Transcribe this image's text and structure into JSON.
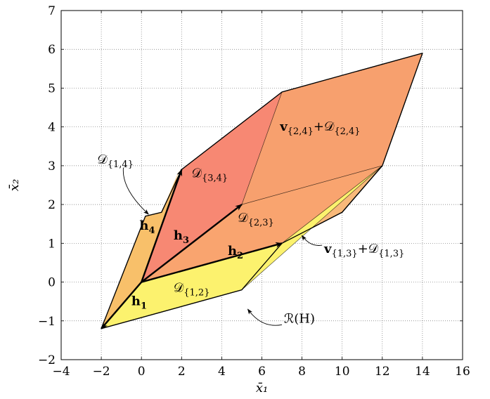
{
  "chart_data": {
    "type": "area",
    "xlabel": "x̄₁",
    "ylabel": "x̄₂",
    "xlim": [
      -4,
      16
    ],
    "ylim": [
      -2,
      7
    ],
    "xticks": [
      -4,
      -2,
      0,
      2,
      4,
      6,
      8,
      10,
      12,
      14,
      16
    ],
    "yticks": [
      -2,
      -1,
      0,
      1,
      2,
      3,
      4,
      5,
      6,
      7
    ],
    "grid": true,
    "colors": {
      "outer": "#f9b97a",
      "d12": "#fcf26e",
      "d13": "#f7c566",
      "d14": "#f8c06a",
      "d23": "#f9a46f",
      "d34": "#f78873",
      "d24": "#f7a06e"
    },
    "regions": [
      {
        "id": "outer",
        "points": [
          [
            -2,
            -1.2
          ],
          [
            5,
            -0.2
          ],
          [
            7,
            1
          ],
          [
            10,
            1.8
          ],
          [
            12,
            3
          ],
          [
            14,
            5.9
          ],
          [
            7,
            4.9
          ],
          [
            2,
            2.9
          ],
          [
            1,
            1.8
          ],
          [
            0.2,
            1.7
          ]
        ]
      },
      {
        "id": "d12",
        "points": [
          [
            -2,
            -1.2
          ],
          [
            5,
            -0.2
          ],
          [
            12,
            3
          ],
          [
            7,
            1
          ],
          [
            0,
            0
          ]
        ]
      },
      {
        "id": "d13",
        "points": [
          [
            0,
            0
          ],
          [
            7,
            1
          ],
          [
            12,
            3
          ],
          [
            5,
            2
          ]
        ]
      },
      {
        "id": "d14",
        "points": [
          [
            -2,
            -1.2
          ],
          [
            0,
            0
          ],
          [
            1.9,
            2.9
          ],
          [
            1,
            1.8
          ],
          [
            0.2,
            1.7
          ]
        ]
      },
      {
        "id": "d23",
        "points": [
          [
            0,
            0
          ],
          [
            7,
            1
          ],
          [
            12,
            3
          ],
          [
            5,
            2
          ]
        ]
      },
      {
        "id": "d34",
        "points": [
          [
            0,
            0
          ],
          [
            5,
            2
          ],
          [
            7,
            4.9
          ],
          [
            2,
            2.9
          ]
        ]
      },
      {
        "id": "d24",
        "points": [
          [
            5,
            2
          ],
          [
            12,
            3
          ],
          [
            14,
            5.9
          ],
          [
            7,
            4.9
          ]
        ]
      }
    ],
    "inner_edges": [
      [
        [
          5,
          2
        ],
        [
          12,
          3
        ]
      ],
      [
        [
          5,
          2
        ],
        [
          7,
          4.9
        ]
      ],
      [
        [
          7,
          1
        ],
        [
          12,
          3
        ]
      ],
      [
        [
          5,
          -0.2
        ],
        [
          12,
          3
        ]
      ]
    ],
    "vectors": [
      {
        "name": "h1",
        "from": [
          0,
          0
        ],
        "to": [
          -2,
          -1.2
        ]
      },
      {
        "name": "h2",
        "from": [
          0,
          0
        ],
        "to": [
          7,
          1
        ]
      },
      {
        "name": "h3",
        "from": [
          0,
          0
        ],
        "to": [
          5,
          2
        ]
      },
      {
        "name": "h4",
        "from": [
          0,
          0
        ],
        "to": [
          2,
          2.9
        ]
      }
    ],
    "annotations": [
      {
        "id": "lbl-h1",
        "text": "h",
        "sub": "1",
        "bold": true,
        "at": [
          -0.5,
          -0.6
        ]
      },
      {
        "id": "lbl-h2",
        "text": "h",
        "sub": "2",
        "bold": true,
        "at": [
          4.3,
          0.7
        ]
      },
      {
        "id": "lbl-h3",
        "text": "h",
        "sub": "3",
        "bold": true,
        "at": [
          1.6,
          1.1
        ]
      },
      {
        "id": "lbl-h4",
        "text": "h",
        "sub": "4",
        "bold": true,
        "at": [
          -0.1,
          1.35
        ]
      },
      {
        "id": "lbl-d12",
        "text": "𝒟",
        "sub": "{1,2}",
        "bold": false,
        "at": [
          1.6,
          -0.25
        ]
      },
      {
        "id": "lbl-d23",
        "text": "𝒟",
        "sub": "{2,3}",
        "bold": false,
        "at": [
          4.8,
          1.55
        ]
      },
      {
        "id": "lbl-d34",
        "text": "𝒟",
        "sub": "{3,4}",
        "bold": false,
        "at": [
          2.5,
          2.7
        ]
      },
      {
        "id": "lbl-d14",
        "text": "𝒟",
        "sub": "{1,4}",
        "bold": false,
        "at": [
          -2.2,
          3.05
        ]
      },
      {
        "id": "lbl-v24",
        "text": "v",
        "sub": "{2,4}",
        "bold": true,
        "tail": "+𝒟",
        "tail_sub": "{2,4}",
        "at": [
          6.9,
          3.9
        ]
      },
      {
        "id": "lbl-v13",
        "text": "v",
        "sub": "{1,3}",
        "bold": true,
        "tail": "+𝒟",
        "tail_sub": "{1,3}",
        "at": [
          9.1,
          0.75
        ]
      },
      {
        "id": "lbl-rh",
        "text": "ℛ(H)",
        "bold": false,
        "at": [
          7.1,
          -1.05
        ]
      }
    ],
    "pointers": [
      {
        "from": [
          -0.9,
          2.95
        ],
        "to": [
          0.35,
          1.75
        ],
        "ctrl": [
          -1,
          2.4
        ]
      },
      {
        "from": [
          9.0,
          0.95
        ],
        "to": [
          8.0,
          1.2
        ],
        "ctrl": [
          8.4,
          0.9
        ]
      },
      {
        "from": [
          7.0,
          -1.1
        ],
        "to": [
          5.3,
          -0.7
        ],
        "ctrl": [
          6.0,
          -1.2
        ]
      }
    ]
  }
}
